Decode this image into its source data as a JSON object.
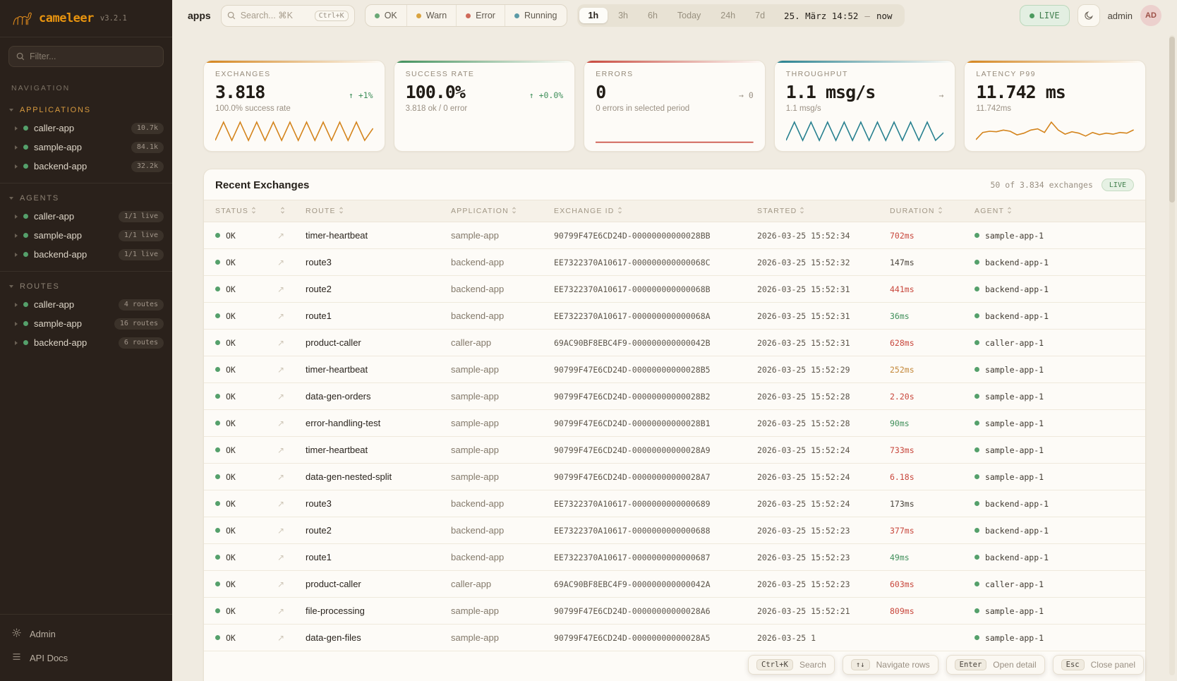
{
  "sidebar": {
    "logo": {
      "name": "cameleer",
      "version": "v3.2.1"
    },
    "filter_placeholder": "Filter...",
    "nav_label": "NAVIGATION",
    "groups": [
      {
        "title": "APPLICATIONS",
        "accent": true,
        "items": [
          {
            "label": "caller-app",
            "badge": "10.7k"
          },
          {
            "label": "sample-app",
            "badge": "84.1k"
          },
          {
            "label": "backend-app",
            "badge": "32.2k"
          }
        ]
      },
      {
        "title": "AGENTS",
        "accent": false,
        "items": [
          {
            "label": "caller-app",
            "badge": "1/1 live"
          },
          {
            "label": "sample-app",
            "badge": "1/1 live"
          },
          {
            "label": "backend-app",
            "badge": "1/1 live"
          }
        ]
      },
      {
        "title": "ROUTES",
        "accent": false,
        "items": [
          {
            "label": "caller-app",
            "badge": "4 routes"
          },
          {
            "label": "sample-app",
            "badge": "16 routes"
          },
          {
            "label": "backend-app",
            "badge": "6 routes"
          }
        ]
      }
    ],
    "footer": [
      {
        "icon": "gear-icon",
        "label": "Admin"
      },
      {
        "icon": "list-icon",
        "label": "API Docs"
      }
    ]
  },
  "topbar": {
    "breadcrumb": "apps",
    "search": {
      "placeholder": "Search... ⌘K",
      "kbd": "Ctrl+K"
    },
    "status_filters": [
      {
        "label": "OK",
        "color": "#6aa876"
      },
      {
        "label": "Warn",
        "color": "#d9a441"
      },
      {
        "label": "Error",
        "color": "#cf6a5a"
      },
      {
        "label": "Running",
        "color": "#5b9aa6"
      }
    ],
    "time_ranges": [
      {
        "label": "1h",
        "active": true
      },
      {
        "label": "3h",
        "active": false
      },
      {
        "label": "6h",
        "active": false
      },
      {
        "label": "Today",
        "active": false
      },
      {
        "label": "24h",
        "active": false
      },
      {
        "label": "7d",
        "active": false
      }
    ],
    "datetime": {
      "from": "25. März 14:52",
      "sep": "—",
      "to": "now"
    },
    "live_label": "LIVE",
    "user": {
      "name": "admin",
      "initials": "AD"
    }
  },
  "stats": {
    "cards": [
      {
        "label": "EXCHANGES",
        "value": "3.818",
        "delta_arrow": "↑",
        "delta": "+1%",
        "delta_color": "green",
        "subtitle": "100.0% success rate",
        "accent": "#d4841c",
        "spark_color": "#d4841c",
        "spark": [
          12,
          88,
          12,
          88,
          12,
          88,
          12,
          88,
          12,
          88,
          12,
          88,
          12,
          88,
          12,
          88,
          12,
          88,
          12,
          62
        ]
      },
      {
        "label": "SUCCESS RATE",
        "value": "100.0%",
        "delta_arrow": "↑",
        "delta": "+0.0%",
        "delta_color": "green",
        "subtitle": "3.818 ok / 0 error",
        "accent": "#3f8f5a",
        "spark_color": null,
        "spark": null
      },
      {
        "label": "ERRORS",
        "value": "0",
        "delta_arrow": "→",
        "delta": "0",
        "delta_color": "gray",
        "subtitle": "0 errors in selected period",
        "accent": "#c8473c",
        "spark_color": "#c8473c",
        "spark": [
          4,
          4
        ]
      },
      {
        "label": "THROUGHPUT",
        "value": "1.1 msg/s",
        "delta_arrow": "→",
        "delta": "",
        "delta_color": "gray",
        "subtitle": "1.1 msg/s",
        "accent": "#27808f",
        "spark_color": "#27808f",
        "spark": [
          12,
          88,
          12,
          88,
          12,
          88,
          12,
          88,
          12,
          88,
          12,
          88,
          12,
          88,
          12,
          88,
          12,
          88,
          12,
          45
        ]
      },
      {
        "label": "LATENCY P99",
        "value": "11.742 ms",
        "delta_arrow": "",
        "delta": "",
        "delta_color": "gray",
        "subtitle": "11.742ms",
        "accent": "#d4841c",
        "spark_color": "#d4841c",
        "spark": [
          15,
          45,
          50,
          48,
          55,
          50,
          35,
          42,
          55,
          60,
          45,
          88,
          55,
          38,
          48,
          42,
          30,
          45,
          36,
          42,
          38,
          45,
          42,
          56
        ]
      }
    ]
  },
  "table": {
    "title": "Recent Exchanges",
    "meta": "50 of 3.834 exchanges",
    "live_label": "LIVE",
    "columns": [
      {
        "label": "STATUS",
        "key": "status"
      },
      {
        "label": "",
        "key": "expand"
      },
      {
        "label": "ROUTE",
        "key": "route"
      },
      {
        "label": "APPLICATION",
        "key": "application"
      },
      {
        "label": "EXCHANGE ID",
        "key": "exchange-id"
      },
      {
        "label": "STARTED",
        "key": "started"
      },
      {
        "label": "DURATION",
        "key": "duration"
      },
      {
        "label": "AGENT",
        "key": "agent"
      }
    ],
    "expand_glyph": "↗",
    "rows": [
      {
        "status": "OK",
        "route": "timer-heartbeat",
        "app": "sample-app",
        "id": "90799F47E6CD24D-00000000000028BB",
        "started": "2026-03-25 15:52:34",
        "duration": "702ms",
        "duration_color": "red",
        "agent": "sample-app-1"
      },
      {
        "status": "OK",
        "route": "route3",
        "app": "backend-app",
        "id": "EE7322370A10617-000000000000068C",
        "started": "2026-03-25 15:52:32",
        "duration": "147ms",
        "duration_color": "neutral",
        "agent": "backend-app-1"
      },
      {
        "status": "OK",
        "route": "route2",
        "app": "backend-app",
        "id": "EE7322370A10617-000000000000068B",
        "started": "2026-03-25 15:52:31",
        "duration": "441ms",
        "duration_color": "red",
        "agent": "backend-app-1"
      },
      {
        "status": "OK",
        "route": "route1",
        "app": "backend-app",
        "id": "EE7322370A10617-000000000000068A",
        "started": "2026-03-25 15:52:31",
        "duration": "36ms",
        "duration_color": "green",
        "agent": "backend-app-1"
      },
      {
        "status": "OK",
        "route": "product-caller",
        "app": "caller-app",
        "id": "69AC90BF8EBC4F9-000000000000042B",
        "started": "2026-03-25 15:52:31",
        "duration": "628ms",
        "duration_color": "red",
        "agent": "caller-app-1"
      },
      {
        "status": "OK",
        "route": "timer-heartbeat",
        "app": "sample-app",
        "id": "90799F47E6CD24D-00000000000028B5",
        "started": "2026-03-25 15:52:29",
        "duration": "252ms",
        "duration_color": "amber",
        "agent": "sample-app-1"
      },
      {
        "status": "OK",
        "route": "data-gen-orders",
        "app": "sample-app",
        "id": "90799F47E6CD24D-00000000000028B2",
        "started": "2026-03-25 15:52:28",
        "duration": "2.20s",
        "duration_color": "red",
        "agent": "sample-app-1"
      },
      {
        "status": "OK",
        "route": "error-handling-test",
        "app": "sample-app",
        "id": "90799F47E6CD24D-00000000000028B1",
        "started": "2026-03-25 15:52:28",
        "duration": "90ms",
        "duration_color": "green",
        "agent": "sample-app-1"
      },
      {
        "status": "OK",
        "route": "timer-heartbeat",
        "app": "sample-app",
        "id": "90799F47E6CD24D-00000000000028A9",
        "started": "2026-03-25 15:52:24",
        "duration": "733ms",
        "duration_color": "red",
        "agent": "sample-app-1"
      },
      {
        "status": "OK",
        "route": "data-gen-nested-split",
        "app": "sample-app",
        "id": "90799F47E6CD24D-00000000000028A7",
        "started": "2026-03-25 15:52:24",
        "duration": "6.18s",
        "duration_color": "red",
        "agent": "sample-app-1"
      },
      {
        "status": "OK",
        "route": "route3",
        "app": "backend-app",
        "id": "EE7322370A10617-0000000000000689",
        "started": "2026-03-25 15:52:24",
        "duration": "173ms",
        "duration_color": "neutral",
        "agent": "backend-app-1"
      },
      {
        "status": "OK",
        "route": "route2",
        "app": "backend-app",
        "id": "EE7322370A10617-0000000000000688",
        "started": "2026-03-25 15:52:23",
        "duration": "377ms",
        "duration_color": "red",
        "agent": "backend-app-1"
      },
      {
        "status": "OK",
        "route": "route1",
        "app": "backend-app",
        "id": "EE7322370A10617-0000000000000687",
        "started": "2026-03-25 15:52:23",
        "duration": "49ms",
        "duration_color": "green",
        "agent": "backend-app-1"
      },
      {
        "status": "OK",
        "route": "product-caller",
        "app": "caller-app",
        "id": "69AC90BF8EBC4F9-000000000000042A",
        "started": "2026-03-25 15:52:23",
        "duration": "603ms",
        "duration_color": "red",
        "agent": "caller-app-1"
      },
      {
        "status": "OK",
        "route": "file-processing",
        "app": "sample-app",
        "id": "90799F47E6CD24D-00000000000028A6",
        "started": "2026-03-25 15:52:21",
        "duration": "809ms",
        "duration_color": "red",
        "agent": "sample-app-1"
      },
      {
        "status": "OK",
        "route": "data-gen-files",
        "app": "sample-app",
        "id": "90799F47E6CD24D-00000000000028A5",
        "started": "2026-03-25 1",
        "duration": "",
        "duration_color": "neutral",
        "agent": "sample-app-1"
      }
    ]
  },
  "shortcuts": [
    {
      "kbd": "Ctrl+K",
      "label": "Search"
    },
    {
      "kbd": "↑↓",
      "label": "Navigate rows"
    },
    {
      "kbd": "Enter",
      "label": "Open detail"
    },
    {
      "kbd": "Esc",
      "label": "Close panel"
    }
  ],
  "colors": {
    "sidebar_bg": "#2a211b",
    "main_bg": "#f0ebe1",
    "brand_orange": "#e8940f",
    "status_green": "#55a06b",
    "duration": {
      "green": "#3f8f5a",
      "neutral": "#4a443c",
      "amber": "#c4893b",
      "red": "#c8473c"
    }
  }
}
